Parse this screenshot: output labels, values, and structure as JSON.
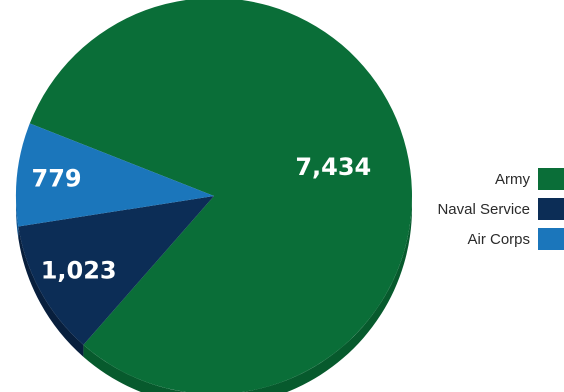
{
  "chart_data": {
    "type": "pie",
    "categories": [
      "Army",
      "Naval Service",
      "Air Corps"
    ],
    "values": [
      7434,
      1023,
      779
    ],
    "value_labels": [
      "7,434",
      "1,023",
      "779"
    ],
    "colors": [
      "#0a6e38",
      "#0c2d56",
      "#1b76bb"
    ],
    "side_colors": [
      "#075a2d",
      "#081f3d",
      "#0d5694"
    ],
    "style": "3d-tilted",
    "legend_position": "right",
    "title": "",
    "xlabel": "",
    "ylabel": ""
  },
  "legend": {
    "items": [
      {
        "label": "Army",
        "color": "#0a6e38"
      },
      {
        "label": "Naval Service",
        "color": "#0c2d56"
      },
      {
        "label": "Air Corps",
        "color": "#1b76bb"
      }
    ]
  }
}
